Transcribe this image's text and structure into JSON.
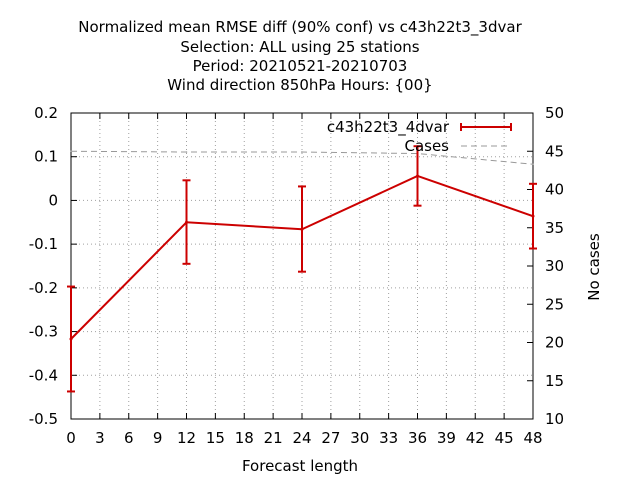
{
  "chart_data": {
    "type": "line",
    "title_lines": [
      "Normalized mean RMSE diff (90% conf) vs c43h22t3_3dvar",
      "Selection: ALL using    25 stations",
      "Period: 20210521-20210703",
      "Wind direction 850hPa   Hours: {00}"
    ],
    "xlabel": "Forecast length",
    "ylabel": "",
    "y2label": "No cases",
    "xlim": [
      0,
      48
    ],
    "ylim": [
      -0.5,
      0.2
    ],
    "y2lim": [
      10,
      50
    ],
    "x_ticks": [
      0,
      3,
      6,
      9,
      12,
      15,
      18,
      21,
      24,
      27,
      30,
      33,
      36,
      39,
      42,
      45,
      48
    ],
    "y_ticks": [
      -0.5,
      -0.4,
      -0.3,
      -0.2,
      -0.1,
      0,
      0.1,
      0.2
    ],
    "y_tick_labels": [
      "-0.5",
      "-0.4",
      "-0.3",
      "-0.2",
      "-0.1",
      "0",
      "0.1",
      "0.2"
    ],
    "y2_ticks": [
      10,
      15,
      20,
      25,
      30,
      35,
      40,
      45,
      50
    ],
    "grid": true,
    "legend_position": "top-right",
    "series": [
      {
        "name": "c43h22t3_4dvar",
        "color": "#cc0000",
        "style": "solid-errorbars",
        "x": [
          0,
          12,
          24,
          36,
          48
        ],
        "y": [
          -0.317,
          -0.05,
          -0.066,
          0.056,
          -0.036
        ],
        "err_low": [
          -0.437,
          -0.145,
          -0.163,
          -0.012,
          -0.11
        ],
        "err_high": [
          -0.197,
          0.046,
          0.032,
          0.124,
          0.038
        ]
      },
      {
        "name": "Cases",
        "color": "#999999",
        "style": "dashed",
        "axis": "y2",
        "x": [
          0,
          12,
          24,
          36,
          48
        ],
        "y": [
          45,
          44.9,
          44.9,
          44.7,
          43.3
        ]
      }
    ]
  }
}
